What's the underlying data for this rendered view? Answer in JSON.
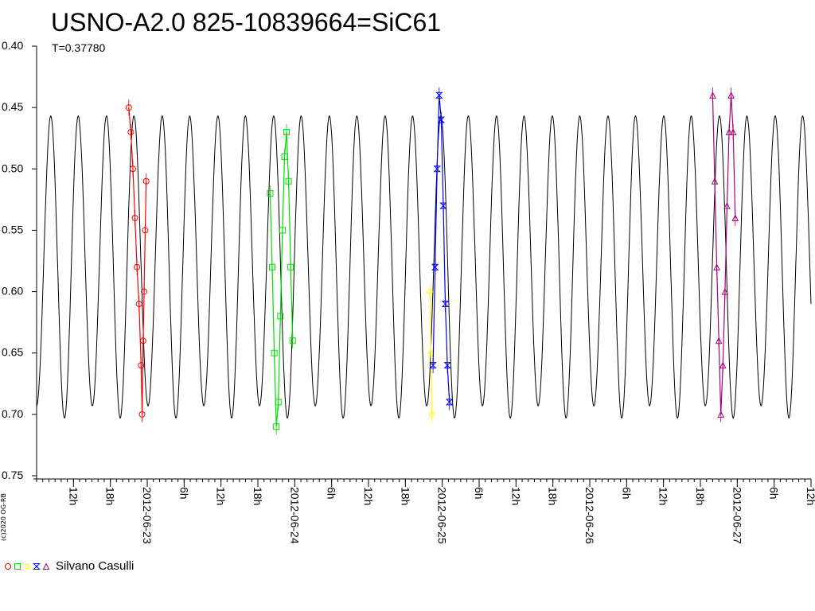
{
  "title": "USNO-A2.0 825-10839664=SiC61",
  "subtitle": "T=0.37780",
  "copyright": "(c)2020 OG-RB",
  "legend": {
    "observer": "Silvano Casulli",
    "series_colors": [
      "#ff0000",
      "#00dd00",
      "#ffff00",
      "#0000ff",
      "#aa0077"
    ],
    "markers": [
      "circle",
      "square",
      "diamond",
      "bowtie",
      "triangle"
    ]
  },
  "chart_data": {
    "type": "scatter",
    "title": "USNO-A2.0 825-10839664=SiC61",
    "xlabel": "",
    "ylabel": "",
    "ylim": [
      0.75,
      0.4
    ],
    "y_inverted": true,
    "xlim": [
      "2012-06-22 06:00",
      "2012-06-27 12:00"
    ],
    "y_ticks": [
      "0.40",
      "0.45",
      "0.50",
      "0.55",
      "0.60",
      "0.65",
      "0.70",
      "0.75"
    ],
    "x_ticks": [
      {
        "t": "2012-06-22 12:00",
        "label": "12h"
      },
      {
        "t": "2012-06-22 18:00",
        "label": "18h"
      },
      {
        "t": "2012-06-23 00:00",
        "label": "2012-06-23"
      },
      {
        "t": "2012-06-23 06:00",
        "label": "6h"
      },
      {
        "t": "2012-06-23 12:00",
        "label": "12h"
      },
      {
        "t": "2012-06-23 18:00",
        "label": "18h"
      },
      {
        "t": "2012-06-24 00:00",
        "label": "2012-06-24"
      },
      {
        "t": "2012-06-24 06:00",
        "label": "6h"
      },
      {
        "t": "2012-06-24 12:00",
        "label": "12h"
      },
      {
        "t": "2012-06-24 18:00",
        "label": "18h"
      },
      {
        "t": "2012-06-25 00:00",
        "label": "2012-06-25"
      },
      {
        "t": "2012-06-25 06:00",
        "label": "6h"
      },
      {
        "t": "2012-06-25 12:00",
        "label": "12h"
      },
      {
        "t": "2012-06-25 18:00",
        "label": "18h"
      },
      {
        "t": "2012-06-26 00:00",
        "label": "2012-06-26"
      },
      {
        "t": "2012-06-26 06:00",
        "label": "6h"
      },
      {
        "t": "2012-06-26 12:00",
        "label": "12h"
      },
      {
        "t": "2012-06-26 18:00",
        "label": "18h"
      },
      {
        "t": "2012-06-27 00:00",
        "label": "2012-06-27"
      },
      {
        "t": "2012-06-27 06:00",
        "label": "6h"
      },
      {
        "t": "2012-06-27 12:00",
        "label": "12h"
      }
    ],
    "grid": false,
    "model": {
      "name": "",
      "period_days": 0.3778,
      "max_bright": [
        0.457,
        0.472
      ],
      "min_faint": [
        0.698,
        0.683
      ],
      "color": "#000000"
    },
    "series": [
      {
        "color": "#ff0000",
        "marker": "circle",
        "points": [
          [
            "2012-06-22 21:00",
            0.45
          ],
          [
            "2012-06-22 21:20",
            0.47
          ],
          [
            "2012-06-22 21:40",
            0.5
          ],
          [
            "2012-06-22 22:00",
            0.54
          ],
          [
            "2012-06-22 22:20",
            0.58
          ],
          [
            "2012-06-22 22:40",
            0.61
          ],
          [
            "2012-06-22 23:00",
            0.66
          ],
          [
            "2012-06-22 23:10",
            0.7
          ],
          [
            "2012-06-22 23:20",
            0.64
          ],
          [
            "2012-06-22 23:30",
            0.6
          ],
          [
            "2012-06-22 23:40",
            0.55
          ],
          [
            "2012-06-22 23:50",
            0.51
          ]
        ]
      },
      {
        "color": "#00dd00",
        "marker": "square",
        "points": [
          [
            "2012-06-23 20:00",
            0.52
          ],
          [
            "2012-06-23 20:20",
            0.58
          ],
          [
            "2012-06-23 20:40",
            0.65
          ],
          [
            "2012-06-23 21:00",
            0.71
          ],
          [
            "2012-06-23 21:20",
            0.69
          ],
          [
            "2012-06-23 21:40",
            0.62
          ],
          [
            "2012-06-23 22:00",
            0.55
          ],
          [
            "2012-06-23 22:20",
            0.49
          ],
          [
            "2012-06-23 22:40",
            0.47
          ],
          [
            "2012-06-23 23:00",
            0.51
          ],
          [
            "2012-06-23 23:20",
            0.58
          ],
          [
            "2012-06-23 23:40",
            0.64
          ]
        ]
      },
      {
        "color": "#ffff00",
        "marker": "diamond",
        "points": [
          [
            "2012-06-24 22:00",
            0.6
          ],
          [
            "2012-06-24 22:10",
            0.65
          ],
          [
            "2012-06-24 22:20",
            0.7
          ]
        ]
      },
      {
        "color": "#0000ff",
        "marker": "bowtie",
        "points": [
          [
            "2012-06-24 22:30",
            0.66
          ],
          [
            "2012-06-24 22:50",
            0.58
          ],
          [
            "2012-06-24 23:10",
            0.5
          ],
          [
            "2012-06-24 23:30",
            0.44
          ],
          [
            "2012-06-24 23:50",
            0.46
          ],
          [
            "2012-06-25 00:10",
            0.53
          ],
          [
            "2012-06-25 00:30",
            0.61
          ],
          [
            "2012-06-25 00:50",
            0.66
          ],
          [
            "2012-06-25 01:10",
            0.69
          ]
        ]
      },
      {
        "color": "#aa0077",
        "marker": "triangle",
        "points": [
          [
            "2012-06-26 20:00",
            0.44
          ],
          [
            "2012-06-26 20:20",
            0.51
          ],
          [
            "2012-06-26 20:40",
            0.58
          ],
          [
            "2012-06-26 21:00",
            0.64
          ],
          [
            "2012-06-26 21:20",
            0.7
          ],
          [
            "2012-06-26 21:40",
            0.66
          ],
          [
            "2012-06-26 22:00",
            0.6
          ],
          [
            "2012-06-26 22:20",
            0.53
          ],
          [
            "2012-06-26 22:40",
            0.47
          ],
          [
            "2012-06-26 23:00",
            0.44
          ],
          [
            "2012-06-26 23:20",
            0.47
          ],
          [
            "2012-06-26 23:40",
            0.54
          ]
        ]
      }
    ]
  }
}
